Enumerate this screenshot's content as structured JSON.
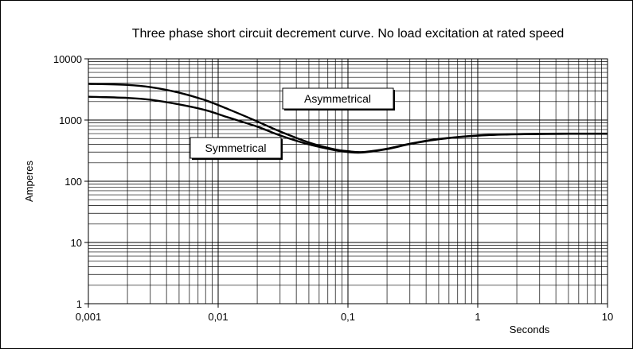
{
  "chart_data": {
    "type": "line",
    "title": "Three phase short circuit decrement curve. No load excitation at rated speed",
    "xlabel": "Seconds",
    "ylabel": "Amperes",
    "xscale": "log",
    "yscale": "log",
    "xlim": [
      0.001,
      10
    ],
    "ylim": [
      1,
      10000
    ],
    "x_ticks": [
      "0,001",
      "0,01",
      "0,1",
      "1",
      "10"
    ],
    "y_ticks": [
      "1",
      "10",
      "100",
      "1000",
      "10000"
    ],
    "grid": true,
    "annotations": [
      "Asymmetrical",
      "Symmetrical"
    ],
    "series": [
      {
        "name": "Asymmetrical",
        "x": [
          0.001,
          0.002,
          0.003,
          0.005,
          0.008,
          0.012,
          0.02,
          0.03,
          0.05,
          0.08,
          0.1,
          0.13,
          0.2,
          0.3,
          0.5,
          1,
          2,
          5,
          10
        ],
        "y": [
          3900,
          3750,
          3450,
          2800,
          2100,
          1500,
          950,
          650,
          430,
          330,
          310,
          300,
          340,
          410,
          490,
          560,
          590,
          600,
          600
        ]
      },
      {
        "name": "Symmetrical",
        "x": [
          0.001,
          0.002,
          0.003,
          0.005,
          0.008,
          0.012,
          0.02,
          0.03,
          0.05,
          0.08,
          0.1,
          0.13,
          0.2,
          0.3,
          0.5,
          1,
          2,
          5,
          10
        ],
        "y": [
          2400,
          2300,
          2150,
          1800,
          1450,
          1100,
          780,
          560,
          400,
          320,
          300,
          295,
          335,
          405,
          485,
          555,
          585,
          595,
          595
        ]
      }
    ]
  }
}
